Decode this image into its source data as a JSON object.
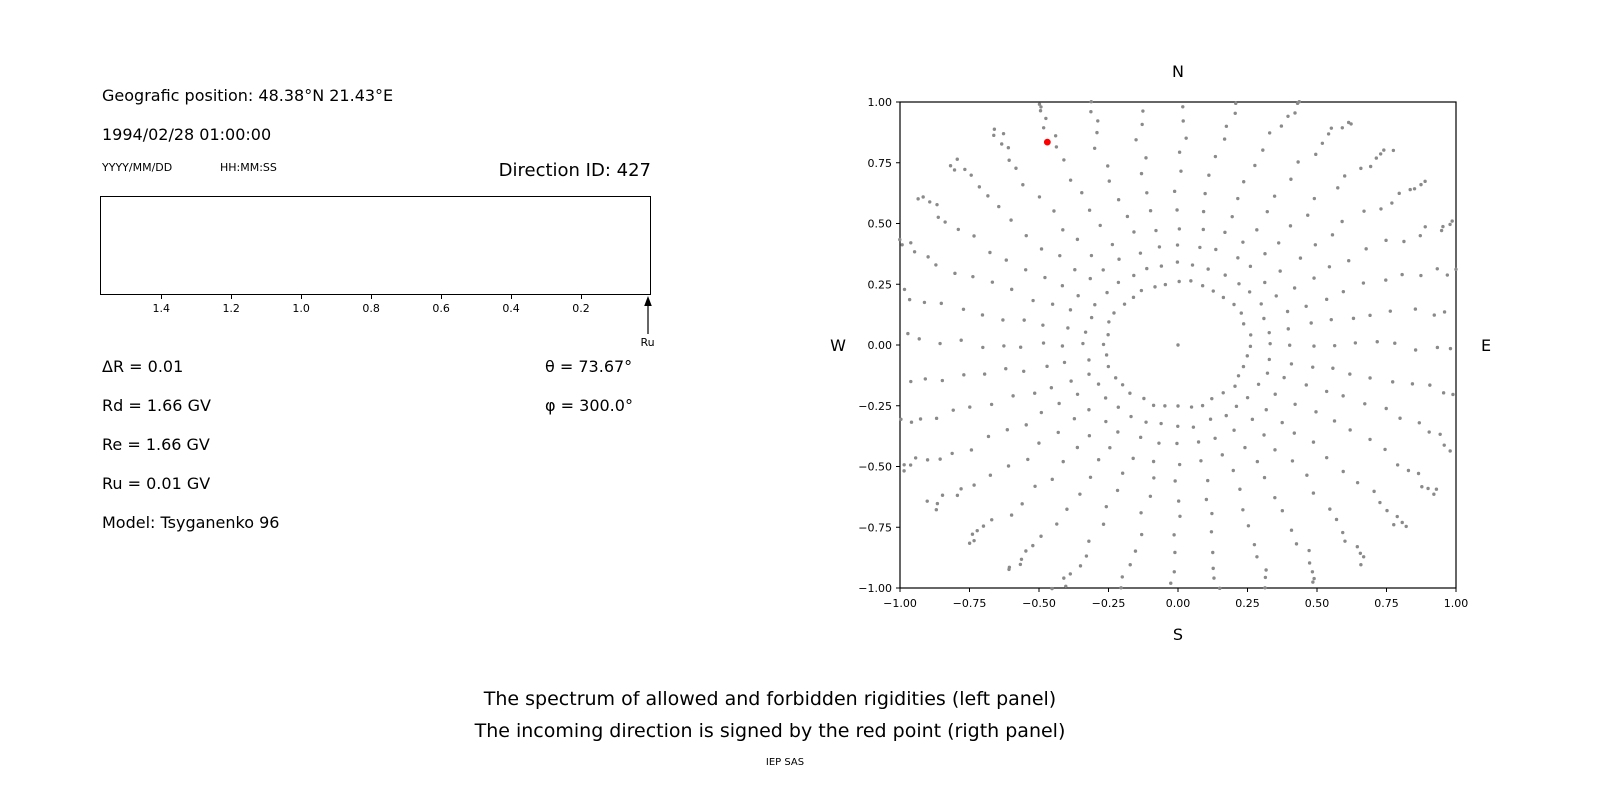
{
  "left_panel": {
    "geo_position": "Geografic position: 48.38°N 21.43°E",
    "datetime": "1994/02/28 01:00:00",
    "date_format_label": "YYYY/MM/DD",
    "time_format_label": "HH:MM:SS",
    "direction_id": "Direction ID: 427",
    "spectrum_axis": {
      "axis_max": 1.575,
      "axis_min": 0.0,
      "ticks": [
        {
          "value": 1.4,
          "label": "1.4"
        },
        {
          "value": 1.2,
          "label": "1.2"
        },
        {
          "value": 1.0,
          "label": "1.0"
        },
        {
          "value": 0.8,
          "label": "0.8"
        },
        {
          "value": 0.6,
          "label": "0.6"
        },
        {
          "value": 0.4,
          "label": "0.4"
        },
        {
          "value": 0.2,
          "label": "0.2"
        }
      ],
      "arrow_label": "Ru",
      "arrow_value": 0.01
    },
    "param_lines": [
      "ΔR = 0.01",
      "Rd = 1.66 GV",
      "Re = 1.66 GV",
      "Ru = 0.01 GV",
      "Model: Tsyganenko 96"
    ],
    "theta": "θ = 73.67°",
    "phi": "φ = 300.0°"
  },
  "chart_data": {
    "type": "scatter",
    "title": "",
    "xlabel": "S",
    "ylabel_left": "W",
    "ylabel_right": "E",
    "top_label": "N",
    "xlim": [
      -1,
      1
    ],
    "ylim": [
      -1,
      1
    ],
    "grid": false,
    "xticks": [
      {
        "value": -1.0,
        "label": "−1.00"
      },
      {
        "value": -0.75,
        "label": "−0.75"
      },
      {
        "value": -0.5,
        "label": "−0.50"
      },
      {
        "value": -0.25,
        "label": "−0.25"
      },
      {
        "value": 0.0,
        "label": "0.00"
      },
      {
        "value": 0.25,
        "label": "0.25"
      },
      {
        "value": 0.5,
        "label": "0.50"
      },
      {
        "value": 0.75,
        "label": "0.75"
      },
      {
        "value": 1.0,
        "label": "1.00"
      }
    ],
    "yticks": [
      {
        "value": 1.0,
        "label": "1.00"
      },
      {
        "value": 0.75,
        "label": "0.75"
      },
      {
        "value": 0.5,
        "label": "0.50"
      },
      {
        "value": 0.25,
        "label": "0.25"
      },
      {
        "value": 0.0,
        "label": "0.00"
      },
      {
        "value": -0.25,
        "label": "−0.25"
      },
      {
        "value": -0.5,
        "label": "−0.50"
      },
      {
        "value": -0.75,
        "label": "−0.75"
      },
      {
        "value": -1.0,
        "label": "−1.00"
      }
    ],
    "compass": {
      "north": "N",
      "south": "S",
      "west": "W",
      "east": "E"
    },
    "spokes": {
      "count": 36,
      "angle_step_deg": 10,
      "radii": [
        0.26,
        0.335,
        0.41,
        0.485,
        0.56,
        0.635,
        0.71,
        0.785,
        0.86,
        0.925,
        0.975,
        1.015,
        1.05,
        1.075,
        1.095,
        1.11
      ],
      "clip_limit": 1.004
    },
    "center_point": {
      "x": 0,
      "y": 0
    },
    "red_point": {
      "x": -0.47,
      "y": 0.835
    },
    "point_color": "#8a8a8a",
    "red_color": "#ff0000"
  },
  "captions": {
    "line1": "The spectrum of allowed and forbidden rigidities (left panel)",
    "line2": "The incoming direction is signed by the red point (rigth panel)",
    "footer": "IEP SAS"
  }
}
